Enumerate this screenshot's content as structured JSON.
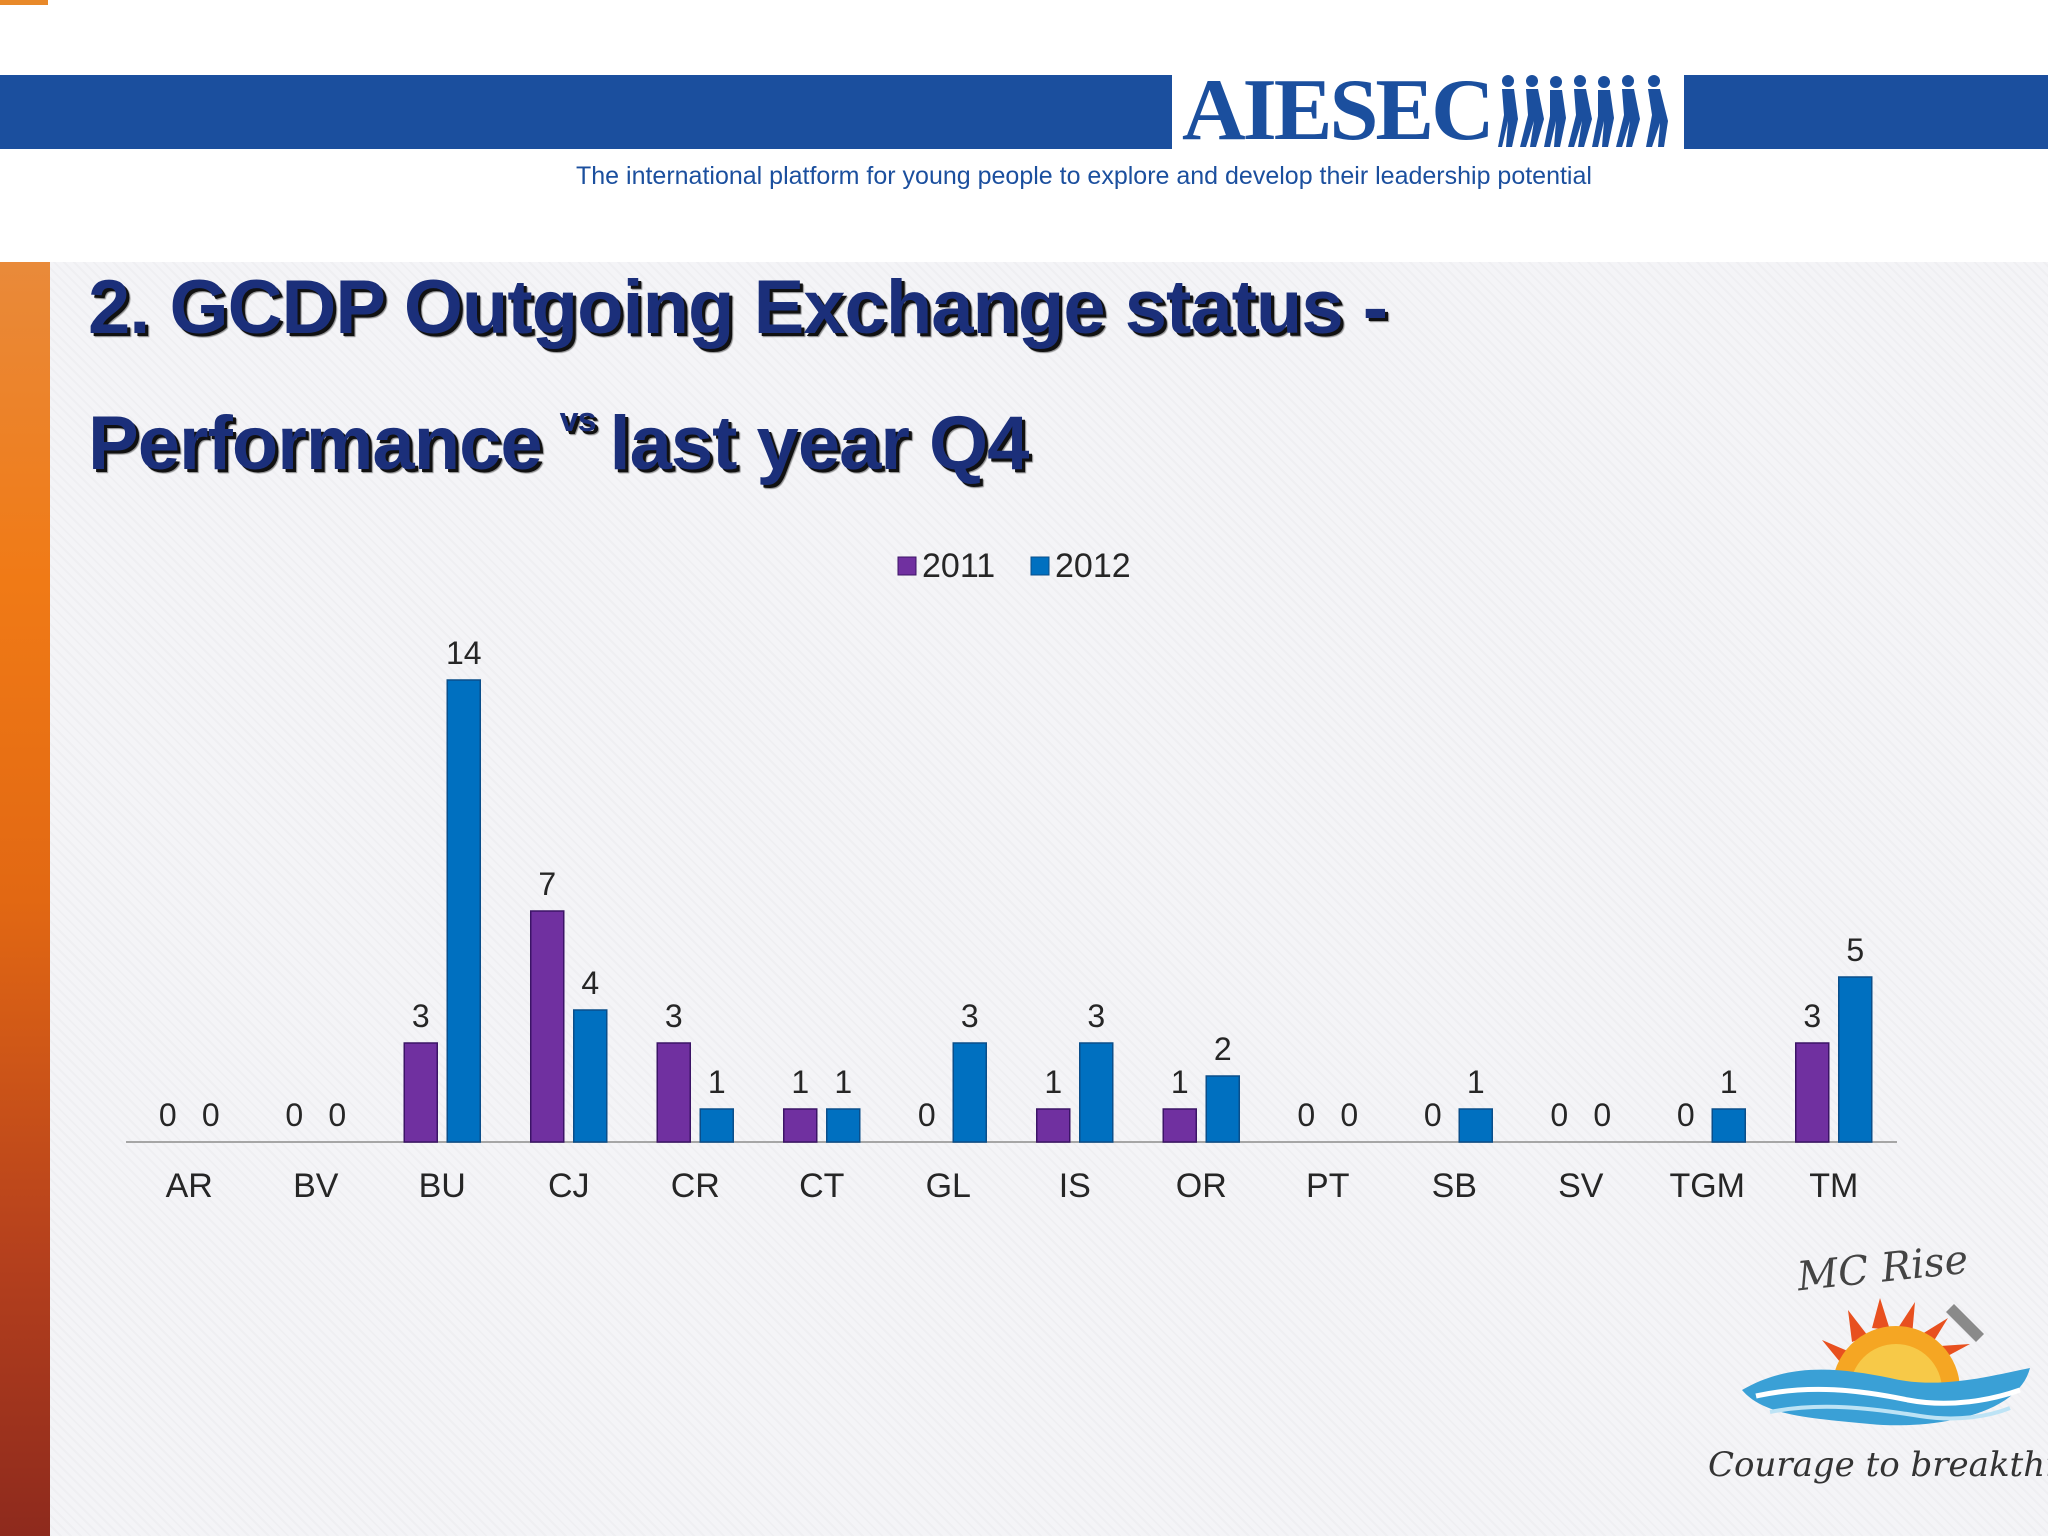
{
  "header": {
    "brand": "AIESEC",
    "tagline": "The international platform for young people to explore and develop their leadership potential"
  },
  "slide": {
    "title_line1": "2. GCDP Outgoing Exchange status -",
    "title_line2_a": "Performance",
    "title_vs": "vs",
    "title_line2_b": "last year Q4"
  },
  "chart_data": {
    "type": "bar",
    "categories": [
      "AR",
      "BV",
      "BU",
      "CJ",
      "CR",
      "CT",
      "GL",
      "IS",
      "OR",
      "PT",
      "SB",
      "SV",
      "TGM",
      "TM"
    ],
    "series": [
      {
        "name": "2011",
        "values": [
          0,
          0,
          3,
          7,
          3,
          1,
          null,
          1,
          1,
          0,
          0,
          0,
          0,
          3
        ],
        "color": "#7030a0"
      },
      {
        "name": "2012",
        "values": [
          0,
          0,
          14,
          4,
          1,
          1,
          3,
          3,
          2,
          0,
          1,
          0,
          1,
          5
        ],
        "color": "#0070c0"
      }
    ],
    "data_label_overrides": {
      "GL": {
        "2011": "0"
      }
    },
    "legend": "top-center",
    "grid": false,
    "ylim": [
      0,
      14
    ]
  },
  "footer_logo": {
    "title": "MC Rise",
    "slogan": "Courage to breakthrough"
  },
  "colors": {
    "accent_blue": "#1b4f9e",
    "title": "#1b2f7a",
    "stripe": "#f07a16"
  },
  "icons": [
    "aiesec-people-icon",
    "sun-wave-icon"
  ]
}
